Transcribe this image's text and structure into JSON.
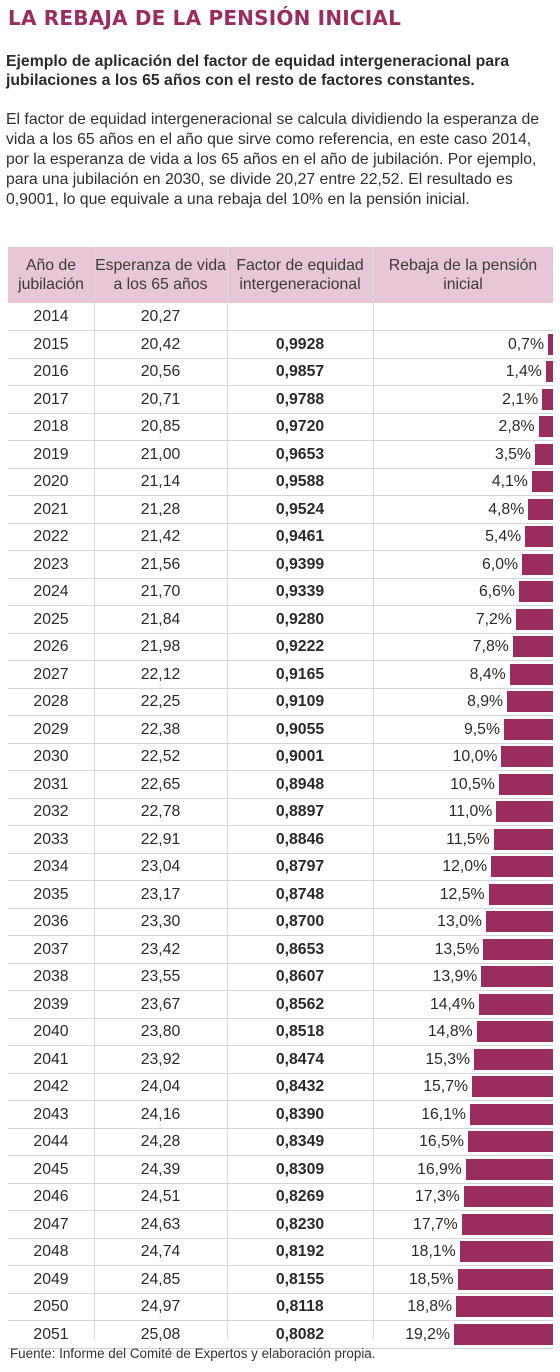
{
  "title": "LA REBAJA DE LA PENSIÓN INICIAL",
  "subtitle": "Ejemplo de aplicación del factor de equidad intergeneracional para jubilaciones a los 65 años con el resto de factores constantes.",
  "description": "El factor de equidad intergeneracional se calcula dividiendo la esperanza de vida a los 65 años en el año que sirve como referencia, en este caso 2014, por la esperanza de vida a los 65 años en el año de jubilación. Por ejemplo, para una jubilación en 2030, se divide 20,27 entre 22,52. El resultado es 0,9001, lo que equivale a una rebaja del 10% en la pensión inicial.",
  "headers": {
    "year": "Año de jubilación",
    "life": "Esperanza de vida a los 65 años",
    "factor": "Factor de equidad intergeneracional",
    "cut": "Rebaja de la pensión inicial"
  },
  "source": "Fuente: Informe del Comité de Expertos y elaboración propia.",
  "colors": {
    "accent": "#9b2c5e",
    "header_bg": "#e7c6d7"
  },
  "chart_data": {
    "type": "table",
    "bar_column": "Rebaja de la pensión inicial",
    "rows": [
      {
        "year": "2014",
        "life": "20,27",
        "factor": "",
        "cut": "",
        "cut_value": 0
      },
      {
        "year": "2015",
        "life": "20,42",
        "factor": "0,9928",
        "cut": "0,7%",
        "cut_value": 0.7
      },
      {
        "year": "2016",
        "life": "20,56",
        "factor": "0,9857",
        "cut": "1,4%",
        "cut_value": 1.4
      },
      {
        "year": "2017",
        "life": "20,71",
        "factor": "0,9788",
        "cut": "2,1%",
        "cut_value": 2.1
      },
      {
        "year": "2018",
        "life": "20,85",
        "factor": "0,9720",
        "cut": "2,8%",
        "cut_value": 2.8
      },
      {
        "year": "2019",
        "life": "21,00",
        "factor": "0,9653",
        "cut": "3,5%",
        "cut_value": 3.5
      },
      {
        "year": "2020",
        "life": "21,14",
        "factor": "0,9588",
        "cut": "4,1%",
        "cut_value": 4.1
      },
      {
        "year": "2021",
        "life": "21,28",
        "factor": "0,9524",
        "cut": "4,8%",
        "cut_value": 4.8
      },
      {
        "year": "2022",
        "life": "21,42",
        "factor": "0,9461",
        "cut": "5,4%",
        "cut_value": 5.4
      },
      {
        "year": "2023",
        "life": "21,56",
        "factor": "0,9399",
        "cut": "6,0%",
        "cut_value": 6.0
      },
      {
        "year": "2024",
        "life": "21,70",
        "factor": "0,9339",
        "cut": "6,6%",
        "cut_value": 6.6
      },
      {
        "year": "2025",
        "life": "21,84",
        "factor": "0,9280",
        "cut": "7,2%",
        "cut_value": 7.2
      },
      {
        "year": "2026",
        "life": "21,98",
        "factor": "0,9222",
        "cut": "7,8%",
        "cut_value": 7.8
      },
      {
        "year": "2027",
        "life": "22,12",
        "factor": "0,9165",
        "cut": "8,4%",
        "cut_value": 8.4
      },
      {
        "year": "2028",
        "life": "22,25",
        "factor": "0,9109",
        "cut": "8,9%",
        "cut_value": 8.9
      },
      {
        "year": "2029",
        "life": "22,38",
        "factor": "0,9055",
        "cut": "9,5%",
        "cut_value": 9.5
      },
      {
        "year": "2030",
        "life": "22,52",
        "factor": "0,9001",
        "cut": "10,0%",
        "cut_value": 10.0
      },
      {
        "year": "2031",
        "life": "22,65",
        "factor": "0,8948",
        "cut": "10,5%",
        "cut_value": 10.5
      },
      {
        "year": "2032",
        "life": "22,78",
        "factor": "0,8897",
        "cut": "11,0%",
        "cut_value": 11.0
      },
      {
        "year": "2033",
        "life": "22,91",
        "factor": "0,8846",
        "cut": "11,5%",
        "cut_value": 11.5
      },
      {
        "year": "2034",
        "life": "23,04",
        "factor": "0,8797",
        "cut": "12,0%",
        "cut_value": 12.0
      },
      {
        "year": "2035",
        "life": "23,17",
        "factor": "0,8748",
        "cut": "12,5%",
        "cut_value": 12.5
      },
      {
        "year": "2036",
        "life": "23,30",
        "factor": "0,8700",
        "cut": "13,0%",
        "cut_value": 13.0
      },
      {
        "year": "2037",
        "life": "23,42",
        "factor": "0,8653",
        "cut": "13,5%",
        "cut_value": 13.5
      },
      {
        "year": "2038",
        "life": "23,55",
        "factor": "0,8607",
        "cut": "13,9%",
        "cut_value": 13.9
      },
      {
        "year": "2039",
        "life": "23,67",
        "factor": "0,8562",
        "cut": "14,4%",
        "cut_value": 14.4
      },
      {
        "year": "2040",
        "life": "23,80",
        "factor": "0,8518",
        "cut": "14,8%",
        "cut_value": 14.8
      },
      {
        "year": "2041",
        "life": "23,92",
        "factor": "0,8474",
        "cut": "15,3%",
        "cut_value": 15.3
      },
      {
        "year": "2042",
        "life": "24,04",
        "factor": "0,8432",
        "cut": "15,7%",
        "cut_value": 15.7
      },
      {
        "year": "2043",
        "life": "24,16",
        "factor": "0,8390",
        "cut": "16,1%",
        "cut_value": 16.1
      },
      {
        "year": "2044",
        "life": "24,28",
        "factor": "0,8349",
        "cut": "16,5%",
        "cut_value": 16.5
      },
      {
        "year": "2045",
        "life": "24,39",
        "factor": "0,8309",
        "cut": "16,9%",
        "cut_value": 16.9
      },
      {
        "year": "2046",
        "life": "24,51",
        "factor": "0,8269",
        "cut": "17,3%",
        "cut_value": 17.3
      },
      {
        "year": "2047",
        "life": "24,63",
        "factor": "0,8230",
        "cut": "17,7%",
        "cut_value": 17.7
      },
      {
        "year": "2048",
        "life": "24,74",
        "factor": "0,8192",
        "cut": "18,1%",
        "cut_value": 18.1
      },
      {
        "year": "2049",
        "life": "24,85",
        "factor": "0,8155",
        "cut": "18,5%",
        "cut_value": 18.5
      },
      {
        "year": "2050",
        "life": "24,97",
        "factor": "0,8118",
        "cut": "18,8%",
        "cut_value": 18.8
      },
      {
        "year": "2051",
        "life": "25,08",
        "factor": "0,8082",
        "cut": "19,2%",
        "cut_value": 19.2
      }
    ]
  }
}
